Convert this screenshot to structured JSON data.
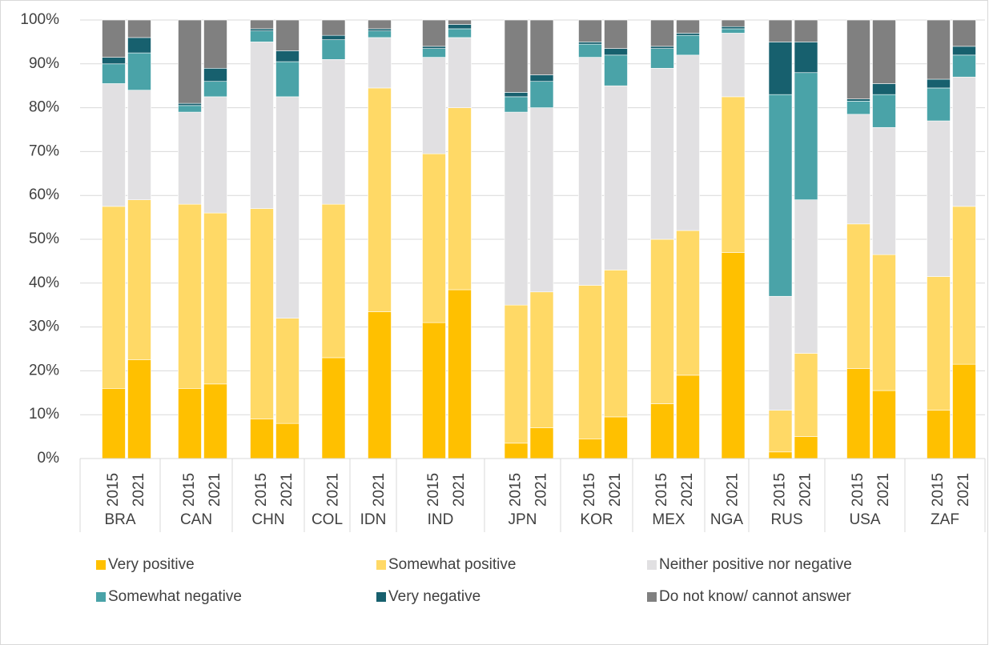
{
  "chart_data": {
    "type": "stacked_bar",
    "groups": [
      {
        "name": "BRA",
        "years": [
          "2015",
          "2021"
        ]
      },
      {
        "name": "CAN",
        "years": [
          "2015",
          "2021"
        ]
      },
      {
        "name": "CHN",
        "years": [
          "2015",
          "2021"
        ]
      },
      {
        "name": "COL",
        "years": [
          "2021"
        ]
      },
      {
        "name": "IDN",
        "years": [
          "2021"
        ]
      },
      {
        "name": "IND",
        "years": [
          "2015",
          "2021"
        ]
      },
      {
        "name": "JPN",
        "years": [
          "2015",
          "2021"
        ]
      },
      {
        "name": "KOR",
        "years": [
          "2015",
          "2021"
        ]
      },
      {
        "name": "MEX",
        "years": [
          "2015",
          "2021"
        ]
      },
      {
        "name": "NGA",
        "years": [
          "2021"
        ]
      },
      {
        "name": "RUS",
        "years": [
          "2015",
          "2021"
        ]
      },
      {
        "name": "USA",
        "years": [
          "2015",
          "2021"
        ]
      },
      {
        "name": "ZAF",
        "years": [
          "2015",
          "2021"
        ]
      }
    ],
    "series": [
      {
        "name": "Very positive",
        "color": "#ffc000",
        "values": [
          16,
          22.5,
          16,
          17,
          9,
          8,
          23,
          33.5,
          31,
          38.5,
          3.5,
          7,
          4.5,
          9.5,
          12.5,
          19,
          47,
          1.5,
          5,
          20.5,
          15.5,
          11,
          21.5
        ]
      },
      {
        "name": "Somewhat positive",
        "color": "#ffd966",
        "values": [
          41.5,
          36.5,
          42,
          39,
          48,
          24,
          35,
          51,
          38.5,
          41.5,
          31.5,
          31,
          35,
          33.5,
          37.5,
          33,
          35.5,
          9.5,
          19,
          33,
          31,
          30.5,
          36
        ]
      },
      {
        "name": "Neither positive nor negative",
        "color": "#e1e0e2",
        "values": [
          28,
          25,
          21,
          26.5,
          38,
          50.5,
          33,
          11.5,
          22,
          16,
          44,
          42,
          52,
          42,
          39,
          40,
          14.5,
          26,
          35,
          25,
          29,
          35.5,
          29.5
        ]
      },
      {
        "name": "Somewhat negative",
        "color": "#4aa3a8",
        "values": [
          4.5,
          8.5,
          1.5,
          3.5,
          2.5,
          8,
          4.5,
          1.5,
          2,
          2,
          3.5,
          6,
          3,
          7,
          4.5,
          4.5,
          1,
          46,
          29,
          3,
          7.5,
          7.5,
          5
        ]
      },
      {
        "name": "Very negative",
        "color": "#17606e",
        "values": [
          1.5,
          3.5,
          0.5,
          3,
          0.5,
          2.5,
          1,
          0.5,
          0.5,
          1,
          1,
          1.5,
          0.5,
          1.5,
          0.5,
          0.5,
          0.5,
          12,
          7,
          0.5,
          2.5,
          2,
          2
        ]
      },
      {
        "name": "Do not know/ cannot answer",
        "color": "#808080",
        "values": [
          8.5,
          4,
          19,
          11,
          2,
          7,
          3.5,
          2,
          6,
          1,
          16.5,
          12.5,
          5,
          6.5,
          6,
          3,
          1.5,
          5,
          5,
          18,
          14.5,
          13.5,
          6
        ]
      }
    ],
    "ylim": [
      0,
      100
    ],
    "yticks": [
      {
        "value": 0,
        "label": "0%"
      },
      {
        "value": 10,
        "label": "10%"
      },
      {
        "value": 20,
        "label": "20%"
      },
      {
        "value": 30,
        "label": "30%"
      },
      {
        "value": 40,
        "label": "40%"
      },
      {
        "value": 50,
        "label": "50%"
      },
      {
        "value": 60,
        "label": "60%"
      },
      {
        "value": 70,
        "label": "70%"
      },
      {
        "value": 80,
        "label": "80%"
      },
      {
        "value": 90,
        "label": "90%"
      },
      {
        "value": 100,
        "label": "100%"
      }
    ]
  }
}
